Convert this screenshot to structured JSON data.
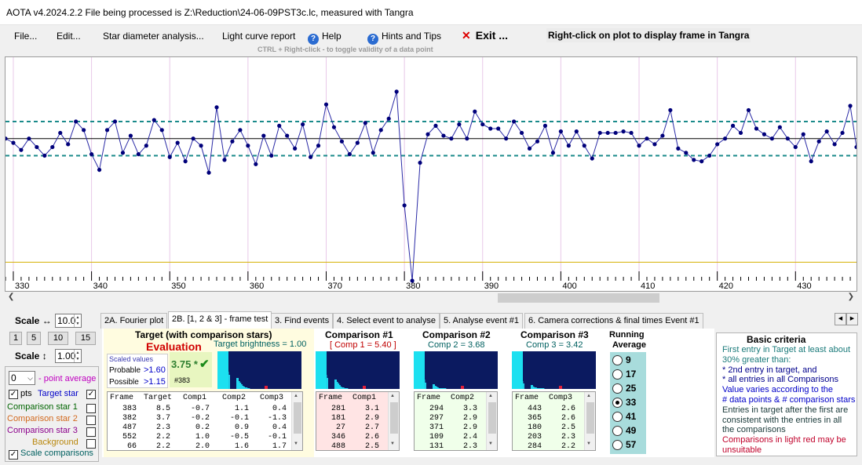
{
  "window": {
    "title": "AOTA v4.2024.2.2    File being processed is Z:\\Reduction\\24-06-09PST3c.lc, measured with Tangra"
  },
  "menu": {
    "file": "File...",
    "edit": "Edit...",
    "star_diameter": "Star diameter analysis...",
    "light_curve": "Light curve report",
    "help": "Help",
    "hints": "Hints and Tips",
    "exit": "Exit ...",
    "right_click_note": "Right-click on plot to display frame in Tangra",
    "ctrl_note": "CTRL + Right-click   - to toggle validity of a data point"
  },
  "plot": {
    "x_ticks": [
      "330",
      "340",
      "350",
      "360",
      "370",
      "380",
      "390",
      "400",
      "410",
      "420",
      "430"
    ],
    "colors": {
      "line": "#2b2ba6",
      "point": "#00007a",
      "mean": "#000000",
      "band": "#1a8a8a",
      "baseline": "#d4b000",
      "grid": "#e8c8e8"
    }
  },
  "chart_data": {
    "type": "line",
    "xlabel": "",
    "ylabel": "",
    "xlim": [
      329,
      437.8
    ],
    "ylim": [
      -1.0,
      0.55
    ],
    "mean": 0,
    "band": [
      0.12,
      -0.12
    ],
    "baseline": -0.87,
    "x": [
      329,
      330,
      331,
      332,
      333,
      334,
      335,
      336,
      337,
      338,
      339,
      340,
      341,
      342,
      343,
      344,
      345,
      346,
      347,
      348,
      349,
      350,
      351,
      352,
      353,
      354,
      355,
      356,
      357,
      358,
      359,
      360,
      361,
      362,
      363,
      364,
      365,
      366,
      367,
      368,
      369,
      370,
      371,
      372,
      373,
      374,
      375,
      376,
      377,
      378,
      379,
      380,
      381,
      382,
      383,
      384,
      385,
      386,
      387,
      388,
      389,
      390,
      391,
      392,
      393,
      394,
      395,
      396,
      397,
      398,
      399,
      400,
      401,
      402,
      403,
      404,
      405,
      406,
      407,
      408,
      409,
      410,
      411,
      412,
      413,
      414,
      415,
      416,
      417,
      418,
      419,
      420,
      421,
      422,
      423,
      424,
      425,
      426,
      427,
      428,
      429,
      430,
      431,
      432,
      433,
      434,
      435,
      436,
      437,
      437.8
    ],
    "y": [
      0.0,
      -0.03,
      -0.08,
      0.0,
      -0.06,
      -0.12,
      -0.06,
      0.04,
      -0.04,
      0.12,
      0.06,
      -0.11,
      -0.22,
      0.06,
      0.12,
      -0.1,
      0.02,
      -0.11,
      -0.05,
      0.13,
      0.06,
      -0.13,
      -0.03,
      -0.16,
      0.0,
      -0.05,
      -0.24,
      0.22,
      -0.15,
      -0.02,
      0.06,
      -0.05,
      -0.18,
      0.02,
      -0.12,
      0.09,
      0.02,
      -0.07,
      0.1,
      -0.13,
      -0.05,
      0.24,
      0.08,
      -0.02,
      -0.11,
      -0.03,
      0.11,
      -0.1,
      0.06,
      0.14,
      0.33,
      -0.47,
      -1.0,
      -0.17,
      0.03,
      0.09,
      0.02,
      0.0,
      0.1,
      0.0,
      0.19,
      0.1,
      0.07,
      0.07,
      0.0,
      0.12,
      0.04,
      -0.07,
      -0.02,
      0.09,
      -0.1,
      0.05,
      -0.05,
      0.05,
      -0.05,
      -0.14,
      0.04,
      0.04,
      0.04,
      0.05,
      0.04,
      -0.05,
      0.0,
      -0.04,
      0.02,
      0.2,
      -0.07,
      -0.1,
      -0.15,
      -0.16,
      -0.12,
      -0.04,
      0.0,
      0.09,
      0.04,
      0.2,
      0.07,
      0.03,
      0.0,
      0.08,
      0.0,
      -0.06,
      0.03,
      -0.16,
      -0.02,
      0.05,
      -0.04,
      0.04,
      0.23,
      -0.06
    ]
  },
  "tabs": [
    "2A. Fourier plot",
    "2B. [1, 2 & 3] - frame test",
    "3. Find events",
    "4. Select event to analyse",
    "5. Analyse event #1",
    "6. Camera corrections & final times Event #1"
  ],
  "left": {
    "scale_h_label": "Scale ↔",
    "scale_h_value": "10.0",
    "buttons": [
      "1",
      "5",
      "10",
      "15"
    ],
    "scale_v_label": "Scale ↕",
    "scale_v_value": "1.00",
    "point_avg_value": "0",
    "point_avg_label": "- point average",
    "pts": "pts",
    "target_star": "Target star",
    "comparison1": "Comparison star 1",
    "comparison2": "Comparison star 2",
    "comparison3": "Comparison star 3",
    "background": "Background",
    "scale_comparisons": "Scale comparisons",
    "colors": {
      "target": "#0000c8",
      "comp1": "#006400",
      "comp2": "#d2691e",
      "comp3": "#8b008b",
      "background": "#b8860b"
    }
  },
  "target": {
    "title": "Target (with comparison stars)",
    "evaluation": "Evaluation",
    "brightness": "Target  brightness = 1.00",
    "scaled_values": "Scaled values",
    "probable_label": "Probable",
    "probable_value": ">1.60",
    "possible_label": "Possible",
    "possible_value": ">1.15",
    "score": "3.75 *",
    "score_check": "✔",
    "frame_ref": "#383",
    "headers": [
      "Frame",
      "Target",
      "Comp1",
      "Comp2",
      "Comp3"
    ],
    "rows": [
      [
        "383",
        "8.5",
        "-0.7",
        "1.1",
        "0.4"
      ],
      [
        "382",
        "3.7",
        "-0.2",
        "-0.1",
        "-1.3"
      ],
      [
        "487",
        "2.3",
        "0.2",
        "0.9",
        "0.4"
      ],
      [
        "552",
        "2.2",
        "1.0",
        "-0.5",
        "-0.1"
      ],
      [
        "66",
        "2.2",
        "2.0",
        "1.6",
        "1.7"
      ]
    ]
  },
  "comp1": {
    "title": "Comparison #1",
    "tag": "[ Comp 1 = 5.40 ]",
    "headers": [
      "Frame",
      "Comp1"
    ],
    "rows": [
      [
        "281",
        "3.1"
      ],
      [
        "181",
        "2.9"
      ],
      [
        "27",
        "2.7"
      ],
      [
        "346",
        "2.6"
      ],
      [
        "488",
        "2.5"
      ]
    ]
  },
  "comp2": {
    "title": "Comparison #2",
    "tag": "Comp 2 = 3.68",
    "headers": [
      "Frame",
      "Comp2"
    ],
    "rows": [
      [
        "294",
        "3.3"
      ],
      [
        "297",
        "2.9"
      ],
      [
        "371",
        "2.9"
      ],
      [
        "109",
        "2.4"
      ],
      [
        "131",
        "2.3"
      ]
    ]
  },
  "comp3": {
    "title": "Comparison #3",
    "tag": "Comp 3 = 3.42",
    "headers": [
      "Frame",
      "Comp3"
    ],
    "rows": [
      [
        "443",
        "2.6"
      ],
      [
        "365",
        "2.6"
      ],
      [
        "180",
        "2.5"
      ],
      [
        "203",
        "2.3"
      ],
      [
        "284",
        "2.2"
      ]
    ]
  },
  "running": {
    "title1": "Running",
    "title2": "Average",
    "options": [
      "9",
      "17",
      "25",
      "33",
      "41",
      "49",
      "57"
    ],
    "selected": "33"
  },
  "criteria": {
    "title": "Basic criteria",
    "lines": [
      {
        "text": "First entry in Target at least about",
        "color": "#1a7a7a"
      },
      {
        "text": "30% greater than:",
        "color": "#1a7a7a"
      },
      {
        "text": "*  2nd  entry in target, and",
        "color": "#00008b"
      },
      {
        "text": "*  all entries in all Comparisons",
        "color": "#00008b"
      },
      {
        "text": "Value varies according to the",
        "color": "#0000c8"
      },
      {
        "text": "# data points & # comparison stars",
        "color": "#0000c8"
      },
      {
        "text": "Entries in target after the first are",
        "color": "#1a3a3a"
      },
      {
        "text": "consistent with the entries in all",
        "color": "#1a3a3a"
      },
      {
        "text": "the comparisons",
        "color": "#1a3a3a"
      },
      {
        "text": "Comparisons in light red may be",
        "color": "#c0002a"
      },
      {
        "text": "unsuitable",
        "color": "#c0002a"
      }
    ]
  }
}
